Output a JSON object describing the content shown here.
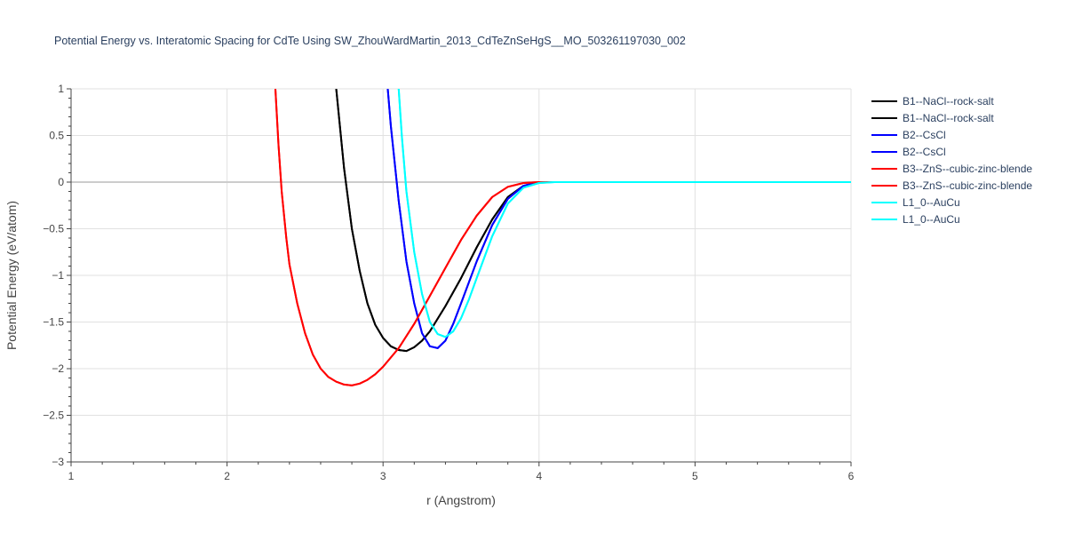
{
  "chart_data": {
    "type": "line",
    "title": "Potential Energy vs. Interatomic Spacing for CdTe Using SW_ZhouWardMartin_2013_CdTeZnSeHgS__MO_503261197030_002",
    "xlabel": "r (Angstrom)",
    "ylabel": "Potential Energy (eV/atom)",
    "xlim": [
      1,
      6
    ],
    "ylim": [
      -3,
      1
    ],
    "xticks": [
      1,
      2,
      3,
      4,
      5,
      6
    ],
    "yticks": [
      1,
      0.5,
      0,
      -0.5,
      -1,
      -1.5,
      -2,
      -2.5,
      -3
    ],
    "xtick_labels": [
      "1",
      "2",
      "3",
      "4",
      "5",
      "6"
    ],
    "ytick_labels": [
      "1",
      "0.5",
      "0",
      "−0.5",
      "−1",
      "−1.5",
      "−2",
      "−2.5",
      "−3"
    ],
    "grid": true,
    "legend_position": "right",
    "series": [
      {
        "name": "B1--NaCl--rock-salt",
        "color": "#000000",
        "x": [
          2.7,
          2.75,
          2.8,
          2.85,
          2.9,
          2.95,
          3.0,
          3.05,
          3.1,
          3.15,
          3.2,
          3.25,
          3.3,
          3.4,
          3.5,
          3.6,
          3.7,
          3.8,
          3.9,
          4.0,
          4.1,
          4.2,
          4.5,
          5.0,
          6.0
        ],
        "y": [
          1.0,
          0.15,
          -0.5,
          -0.95,
          -1.3,
          -1.53,
          -1.67,
          -1.76,
          -1.8,
          -1.81,
          -1.77,
          -1.7,
          -1.6,
          -1.33,
          -1.03,
          -0.7,
          -0.4,
          -0.16,
          -0.04,
          0.0,
          0.0,
          0.0,
          0.0,
          0.0,
          0.0
        ]
      },
      {
        "name": "B1--NaCl--rock-salt",
        "color": "#000000",
        "x": [
          2.7,
          2.75,
          2.8,
          2.85,
          2.9,
          2.95,
          3.0,
          3.05,
          3.1,
          3.15,
          3.2,
          3.25,
          3.3,
          3.4,
          3.5,
          3.6,
          3.7,
          3.8,
          3.9,
          4.0,
          4.1,
          4.2,
          4.5,
          5.0,
          6.0
        ],
        "y": [
          1.0,
          0.15,
          -0.5,
          -0.95,
          -1.3,
          -1.53,
          -1.67,
          -1.76,
          -1.8,
          -1.81,
          -1.77,
          -1.7,
          -1.6,
          -1.33,
          -1.03,
          -0.7,
          -0.4,
          -0.16,
          -0.04,
          0.0,
          0.0,
          0.0,
          0.0,
          0.0,
          0.0
        ]
      },
      {
        "name": "B2--CsCl",
        "color": "#0000ff",
        "x": [
          3.03,
          3.05,
          3.1,
          3.15,
          3.2,
          3.25,
          3.3,
          3.35,
          3.4,
          3.45,
          3.5,
          3.6,
          3.7,
          3.8,
          3.9,
          4.0,
          4.1,
          4.2,
          4.5,
          5.0,
          6.0
        ],
        "y": [
          1.0,
          0.6,
          -0.2,
          -0.85,
          -1.3,
          -1.62,
          -1.76,
          -1.78,
          -1.7,
          -1.52,
          -1.3,
          -0.85,
          -0.46,
          -0.18,
          -0.04,
          0.0,
          0.0,
          0.0,
          0.0,
          0.0,
          0.0
        ]
      },
      {
        "name": "B2--CsCl",
        "color": "#0000ff",
        "x": [
          3.03,
          3.05,
          3.1,
          3.15,
          3.2,
          3.25,
          3.3,
          3.35,
          3.4,
          3.45,
          3.5,
          3.6,
          3.7,
          3.8,
          3.9,
          4.0,
          4.1,
          4.2,
          4.5,
          5.0,
          6.0
        ],
        "y": [
          1.0,
          0.6,
          -0.2,
          -0.85,
          -1.3,
          -1.62,
          -1.76,
          -1.78,
          -1.7,
          -1.52,
          -1.3,
          -0.85,
          -0.46,
          -0.18,
          -0.04,
          0.0,
          0.0,
          0.0,
          0.0,
          0.0,
          0.0
        ]
      },
      {
        "name": "B3--ZnS--cubic-zinc-blende",
        "color": "#ff0000",
        "x": [
          2.31,
          2.33,
          2.35,
          2.38,
          2.4,
          2.45,
          2.5,
          2.55,
          2.6,
          2.65,
          2.7,
          2.75,
          2.8,
          2.85,
          2.9,
          2.95,
          3.0,
          3.1,
          3.2,
          3.3,
          3.4,
          3.5,
          3.6,
          3.7,
          3.8,
          3.9,
          4.0,
          4.1,
          4.2,
          4.5,
          5.0,
          6.0
        ],
        "y": [
          1.0,
          0.4,
          -0.1,
          -0.6,
          -0.88,
          -1.3,
          -1.62,
          -1.85,
          -2.0,
          -2.09,
          -2.14,
          -2.17,
          -2.18,
          -2.16,
          -2.12,
          -2.06,
          -1.98,
          -1.78,
          -1.52,
          -1.22,
          -0.92,
          -0.62,
          -0.36,
          -0.16,
          -0.05,
          -0.01,
          0.0,
          0.0,
          0.0,
          0.0,
          0.0,
          0.0
        ]
      },
      {
        "name": "B3--ZnS--cubic-zinc-blende",
        "color": "#ff0000",
        "x": [
          2.31,
          2.33,
          2.35,
          2.38,
          2.4,
          2.45,
          2.5,
          2.55,
          2.6,
          2.65,
          2.7,
          2.75,
          2.8,
          2.85,
          2.9,
          2.95,
          3.0,
          3.1,
          3.2,
          3.3,
          3.4,
          3.5,
          3.6,
          3.7,
          3.8,
          3.9,
          4.0,
          4.1,
          4.2,
          4.5,
          5.0,
          6.0
        ],
        "y": [
          1.0,
          0.4,
          -0.1,
          -0.6,
          -0.88,
          -1.3,
          -1.62,
          -1.85,
          -2.0,
          -2.09,
          -2.14,
          -2.17,
          -2.18,
          -2.16,
          -2.12,
          -2.06,
          -1.98,
          -1.78,
          -1.52,
          -1.22,
          -0.92,
          -0.62,
          -0.36,
          -0.16,
          -0.05,
          -0.01,
          0.0,
          0.0,
          0.0,
          0.0,
          0.0,
          0.0
        ]
      },
      {
        "name": "L1_0--AuCu",
        "color": "#00ffff",
        "x": [
          3.1,
          3.12,
          3.15,
          3.2,
          3.25,
          3.3,
          3.35,
          3.4,
          3.45,
          3.5,
          3.55,
          3.6,
          3.7,
          3.8,
          3.9,
          4.0,
          4.1,
          4.2,
          4.3,
          4.5,
          5.0,
          6.0
        ],
        "y": [
          1.0,
          0.5,
          -0.1,
          -0.75,
          -1.2,
          -1.5,
          -1.63,
          -1.66,
          -1.6,
          -1.46,
          -1.26,
          -1.03,
          -0.58,
          -0.23,
          -0.06,
          -0.01,
          0.0,
          0.0,
          0.0,
          0.0,
          0.0,
          0.0
        ]
      },
      {
        "name": "L1_0--AuCu",
        "color": "#00ffff",
        "x": [
          3.1,
          3.12,
          3.15,
          3.2,
          3.25,
          3.3,
          3.35,
          3.4,
          3.45,
          3.5,
          3.55,
          3.6,
          3.7,
          3.8,
          3.9,
          4.0,
          4.1,
          4.2,
          4.3,
          4.5,
          5.0,
          6.0
        ],
        "y": [
          1.0,
          0.5,
          -0.1,
          -0.75,
          -1.2,
          -1.5,
          -1.63,
          -1.66,
          -1.6,
          -1.46,
          -1.26,
          -1.03,
          -0.58,
          -0.23,
          -0.06,
          -0.01,
          0.0,
          0.0,
          0.0,
          0.0,
          0.0,
          0.0
        ]
      }
    ]
  }
}
